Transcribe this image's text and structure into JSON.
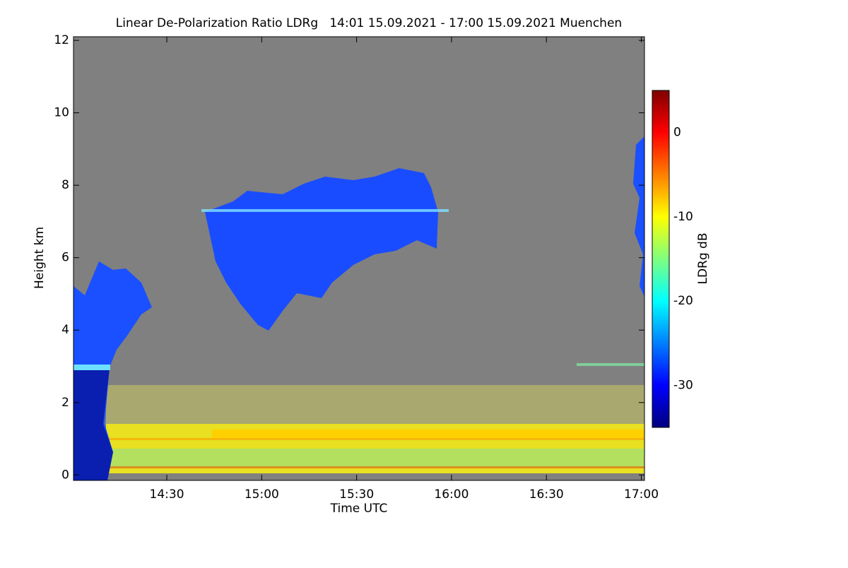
{
  "chart_data": {
    "type": "heatmap",
    "title": "Linear De-Polarization Ratio LDRg   14:01 15.09.2021 - 17:00 15.09.2021 Muenchen",
    "x_label": "Time UTC",
    "y_label": "Height km",
    "xlim": [
      840.5,
      1021
    ],
    "xticks": [
      {
        "value": 870,
        "label": "14:30"
      },
      {
        "value": 900,
        "label": "15:00"
      },
      {
        "value": 930,
        "label": "15:30"
      },
      {
        "value": 960,
        "label": "16:00"
      },
      {
        "value": 990,
        "label": "16:30"
      },
      {
        "value": 1020,
        "label": "17:00"
      }
    ],
    "ylim": [
      -0.15,
      12.1
    ],
    "yticks": [
      0,
      2,
      4,
      6,
      8,
      10,
      12
    ],
    "colorbar": {
      "label": "LDRg dB",
      "lim": [
        -35,
        5
      ],
      "ticks": [
        0,
        -10,
        -20,
        -30
      ],
      "colormap": [
        "#00007f",
        "#0000ff",
        "#007fff",
        "#00ffff",
        "#7fff7f",
        "#ffff00",
        "#ff7f00",
        "#ff0000",
        "#7f0000"
      ]
    }
  }
}
